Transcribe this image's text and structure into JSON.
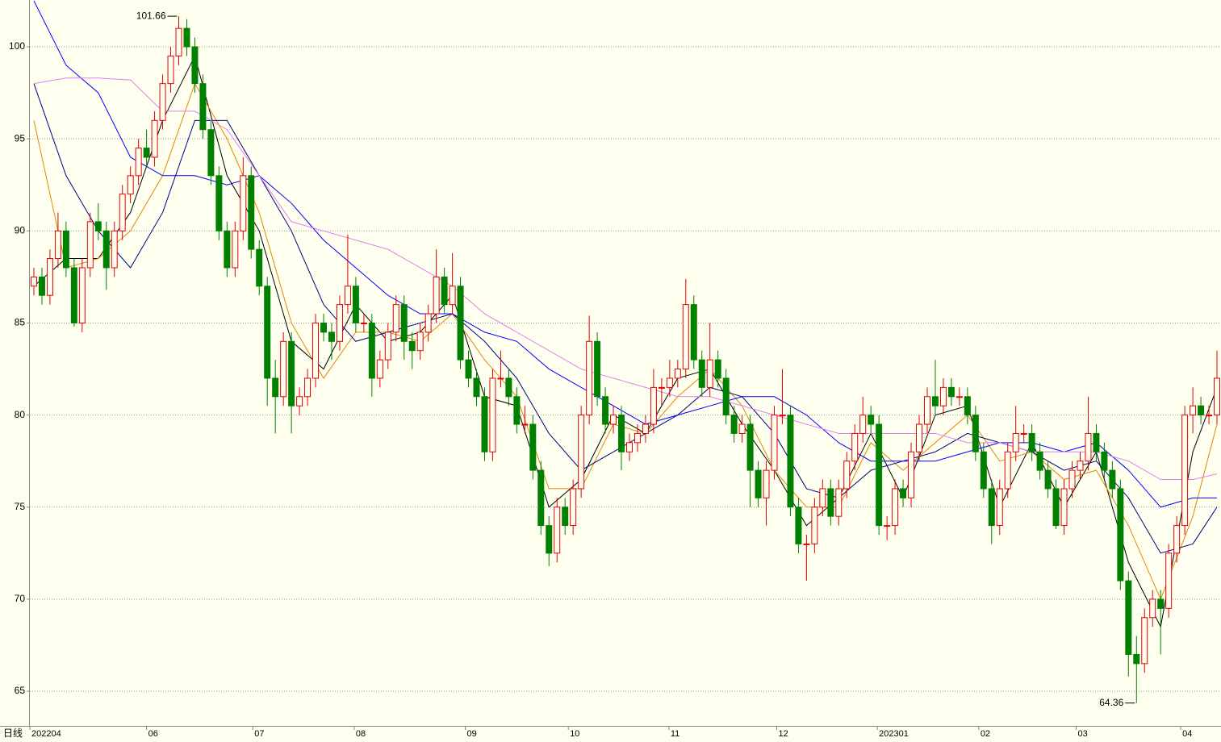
{
  "chart_data": {
    "type": "candlestick",
    "period_label": "日线",
    "max_label": "101.66",
    "min_label": "64.36",
    "ylim": [
      63.12,
      102.54
    ],
    "yticks": [
      65,
      70,
      75,
      80,
      85,
      90,
      95,
      100
    ],
    "grid": true,
    "xlim": [
      -0.5,
      147.5
    ],
    "xticks": [
      {
        "value": -0.5,
        "label": "202204"
      },
      {
        "value": 14,
        "label": "06"
      },
      {
        "value": 27.2,
        "label": "07"
      },
      {
        "value": 39.8,
        "label": "08"
      },
      {
        "value": 53.6,
        "label": "09"
      },
      {
        "value": 66.4,
        "label": "10"
      },
      {
        "value": 78.9,
        "label": "11"
      },
      {
        "value": 92.3,
        "label": "12"
      },
      {
        "value": 104.8,
        "label": "202301"
      },
      {
        "value": 117.4,
        "label": "02"
      },
      {
        "value": 129.5,
        "label": "03"
      },
      {
        "value": 142.5,
        "label": "04"
      }
    ],
    "up_color": "#e00000",
    "down_color": "#008000",
    "ohlc": [
      [
        87,
        88,
        86.5,
        87.5
      ],
      [
        87.5,
        88,
        86,
        86.5
      ],
      [
        86.5,
        89,
        86,
        88.5
      ],
      [
        88.5,
        91,
        88,
        90
      ],
      [
        90,
        90.5,
        87.5,
        88
      ],
      [
        88,
        88.5,
        84.8,
        85
      ],
      [
        85,
        88.5,
        84.5,
        88
      ],
      [
        88,
        91,
        87.5,
        90.5
      ],
      [
        90.5,
        91.5,
        89.5,
        90
      ],
      [
        90,
        90.5,
        86.8,
        88
      ],
      [
        88,
        90.5,
        87.5,
        90
      ],
      [
        90,
        92.5,
        89.5,
        92
      ],
      [
        92,
        93.5,
        91.5,
        93
      ],
      [
        93,
        95,
        92.5,
        94.5
      ],
      [
        94.5,
        95.5,
        93.5,
        94
      ],
      [
        94,
        96.5,
        93.5,
        96
      ],
      [
        96,
        98.5,
        95.5,
        98
      ],
      [
        98,
        100,
        97.5,
        99.5
      ],
      [
        99.5,
        101.66,
        99,
        101
      ],
      [
        101,
        101.5,
        99.5,
        100
      ],
      [
        100,
        100.5,
        97.5,
        98
      ],
      [
        98,
        98.5,
        95,
        95.5
      ],
      [
        95.5,
        96,
        92.5,
        93
      ],
      [
        93,
        93.5,
        89.5,
        90
      ],
      [
        90,
        90.5,
        87.5,
        88
      ],
      [
        88,
        90.5,
        87.5,
        90
      ],
      [
        90,
        94,
        89.5,
        93
      ],
      [
        93,
        93.5,
        88.5,
        89
      ],
      [
        89,
        89.5,
        86.5,
        87
      ],
      [
        87,
        87.5,
        80.5,
        82
      ],
      [
        82,
        83,
        79,
        81
      ],
      [
        81,
        84.5,
        80.5,
        84
      ],
      [
        84,
        84.5,
        79,
        80.5
      ],
      [
        80.5,
        81.5,
        80,
        81
      ],
      [
        81,
        82.5,
        80.5,
        82
      ],
      [
        82,
        85.5,
        81.5,
        85
      ],
      [
        85,
        85.5,
        84,
        84.5
      ],
      [
        84.5,
        85,
        83,
        84
      ],
      [
        84,
        86.5,
        83.5,
        86
      ],
      [
        86,
        89.8,
        85.5,
        87
      ],
      [
        87,
        87.5,
        84.5,
        85
      ],
      [
        85,
        85.5,
        84.5,
        85
      ],
      [
        85,
        85.5,
        81,
        82
      ],
      [
        82,
        83.5,
        81.5,
        83
      ],
      [
        83,
        85,
        82.5,
        84.5
      ],
      [
        84.5,
        86.5,
        84,
        86
      ],
      [
        86,
        86.5,
        83,
        84
      ],
      [
        84,
        84.5,
        82.5,
        83.5
      ],
      [
        83.5,
        85,
        83,
        84.5
      ],
      [
        84.5,
        86,
        84,
        85.5
      ],
      [
        85.5,
        89,
        85,
        87.5
      ],
      [
        87.5,
        88,
        85.5,
        86
      ],
      [
        86,
        88.8,
        85.5,
        87
      ],
      [
        87,
        87.5,
        82.5,
        83
      ],
      [
        83,
        83.5,
        81.5,
        82
      ],
      [
        82,
        82.5,
        80.5,
        81
      ],
      [
        81,
        81.5,
        77.5,
        78
      ],
      [
        78,
        82.5,
        77.5,
        82
      ],
      [
        82,
        83.5,
        81.5,
        82
      ],
      [
        82,
        82.5,
        80.5,
        81
      ],
      [
        81,
        81.5,
        79,
        79.5
      ],
      [
        79.5,
        80.5,
        79,
        79.5
      ],
      [
        79.5,
        80,
        76.5,
        77
      ],
      [
        77,
        77.5,
        73.5,
        74
      ],
      [
        74,
        74.5,
        71.8,
        72.5
      ],
      [
        72.5,
        75.5,
        72,
        75
      ],
      [
        75,
        75.5,
        73.5,
        74
      ],
      [
        74,
        76.5,
        73.5,
        76
      ],
      [
        76,
        80.5,
        75.5,
        80
      ],
      [
        80,
        85.4,
        79.5,
        84
      ],
      [
        84,
        84.5,
        80.5,
        81
      ],
      [
        81,
        81.5,
        79,
        79.5
      ],
      [
        79.5,
        80.5,
        79,
        80
      ],
      [
        80,
        80.5,
        77,
        78
      ],
      [
        78,
        79,
        77.5,
        78.5
      ],
      [
        78.5,
        79.5,
        78,
        79
      ],
      [
        79,
        80,
        78.5,
        79.5
      ],
      [
        79.5,
        82.5,
        79,
        81.5
      ],
      [
        81.5,
        82,
        80.5,
        81.5
      ],
      [
        81.5,
        83,
        81,
        82
      ],
      [
        82,
        83,
        81.5,
        82.5
      ],
      [
        82.5,
        87.4,
        82,
        86
      ],
      [
        86,
        86.5,
        82.5,
        83
      ],
      [
        83,
        83.5,
        81,
        81.5
      ],
      [
        81.5,
        85,
        81,
        83
      ],
      [
        83,
        83.5,
        81.5,
        82
      ],
      [
        82,
        82.5,
        79.5,
        80
      ],
      [
        80,
        80.5,
        78.5,
        79
      ],
      [
        79,
        80,
        78.5,
        79.5
      ],
      [
        79.5,
        80,
        75,
        77
      ],
      [
        77,
        77.5,
        75,
        75.5
      ],
      [
        75.5,
        77.5,
        74,
        77
      ],
      [
        77,
        80.5,
        76.5,
        80
      ],
      [
        80,
        82.5,
        79.5,
        80
      ],
      [
        80,
        80.5,
        74.5,
        75
      ],
      [
        75,
        75.5,
        72.5,
        73
      ],
      [
        73,
        73.5,
        71,
        73
      ],
      [
        73,
        75.5,
        72.5,
        75
      ],
      [
        75,
        76.5,
        74.5,
        76
      ],
      [
        76,
        76.5,
        74,
        74.5
      ],
      [
        74.5,
        76.5,
        74,
        76
      ],
      [
        76,
        78,
        75.5,
        77.5
      ],
      [
        77.5,
        79.5,
        77,
        79
      ],
      [
        79,
        81,
        78.5,
        80
      ],
      [
        80,
        80.5,
        79,
        79.5
      ],
      [
        79.5,
        80,
        73.5,
        74
      ],
      [
        74,
        74.5,
        73.2,
        74
      ],
      [
        74,
        76.5,
        73.5,
        76
      ],
      [
        76,
        76.5,
        75,
        75.5
      ],
      [
        75.5,
        78.5,
        75,
        78
      ],
      [
        78,
        80,
        77.5,
        79.5
      ],
      [
        79.5,
        81.5,
        79,
        81
      ],
      [
        81,
        83,
        80,
        80.5
      ],
      [
        80.5,
        82,
        80,
        81.5
      ],
      [
        81.5,
        82,
        80.5,
        81
      ],
      [
        81,
        81.5,
        80.5,
        81
      ],
      [
        81,
        81.5,
        79.5,
        80
      ],
      [
        80,
        80.5,
        77.5,
        78
      ],
      [
        78,
        78.5,
        75.5,
        76
      ],
      [
        76,
        76.5,
        73,
        74
      ],
      [
        74,
        76.5,
        73.5,
        76
      ],
      [
        76,
        78.5,
        75.5,
        78
      ],
      [
        78,
        80.5,
        77.5,
        79
      ],
      [
        79,
        79.5,
        78.5,
        79
      ],
      [
        79,
        79.5,
        77.5,
        78
      ],
      [
        78,
        78.5,
        76.5,
        77
      ],
      [
        77,
        77.5,
        75.5,
        76
      ],
      [
        76,
        76.5,
        73.8,
        74
      ],
      [
        74,
        76.5,
        73.5,
        76
      ],
      [
        76,
        77.5,
        75.5,
        77
      ],
      [
        77,
        78,
        76.5,
        77.5
      ],
      [
        77.5,
        81,
        77,
        79
      ],
      [
        79,
        79.5,
        77.5,
        78
      ],
      [
        78,
        78.5,
        76.5,
        77
      ],
      [
        77,
        77.5,
        75.5,
        76
      ],
      [
        76,
        76.5,
        70.5,
        71
      ],
      [
        71,
        71.5,
        65.8,
        67
      ],
      [
        67,
        68,
        64.36,
        66.5
      ],
      [
        66.5,
        69.5,
        66,
        69
      ],
      [
        69,
        70.5,
        68.5,
        70
      ],
      [
        70,
        70.5,
        67,
        69.5
      ],
      [
        69.5,
        73,
        69,
        72.5
      ],
      [
        72.5,
        74.5,
        72,
        74
      ],
      [
        74,
        80.5,
        73.5,
        80
      ],
      [
        80,
        81.5,
        79,
        80.5
      ],
      [
        80.5,
        81,
        79.5,
        80
      ],
      [
        80,
        80.5,
        79.5,
        80
      ],
      [
        80,
        83.5,
        79.5,
        82
      ]
    ],
    "ma_x": [
      0,
      4,
      8,
      12,
      16,
      20,
      24,
      28,
      32,
      36,
      40,
      44,
      48,
      52,
      56,
      60,
      64,
      68,
      72,
      76,
      80,
      84,
      88,
      92,
      96,
      100,
      104,
      108,
      112,
      116,
      120,
      124,
      128,
      132,
      136,
      140,
      144,
      147
    ],
    "series": [
      {
        "color": "#000000",
        "values": [
          87,
          88.5,
          88.5,
          91,
          96,
          99.5,
          93,
          90,
          84,
          82.5,
          86,
          84,
          84.5,
          86.5,
          81,
          80.5,
          75,
          76.5,
          80,
          79,
          82,
          82.5,
          79.5,
          77,
          74,
          75.5,
          79,
          75.5,
          80,
          80.5,
          75,
          78.5,
          75,
          78,
          72,
          68.5,
          78,
          81.5
        ]
      },
      {
        "color": "#e08a00",
        "values": [
          96,
          88,
          88.5,
          90,
          93,
          98,
          95,
          91,
          85,
          82,
          84.5,
          84.5,
          84,
          85.5,
          83,
          81,
          76,
          76,
          79.5,
          79,
          81,
          82.5,
          80.5,
          77,
          75,
          75,
          78.5,
          77,
          78.5,
          80,
          77.5,
          78,
          76.5,
          77,
          74,
          70,
          74.5,
          79.5
        ]
      },
      {
        "color": "#000080",
        "values": [
          98,
          93,
          90,
          88,
          91,
          96,
          96,
          93,
          90,
          86,
          84,
          84.5,
          85,
          85.5,
          84,
          82,
          79,
          77,
          78,
          79,
          80,
          81.5,
          81,
          79,
          76,
          75.5,
          77,
          77.5,
          78,
          79,
          78.5,
          78,
          77,
          77.5,
          75.5,
          72.5,
          73,
          75
        ]
      },
      {
        "color": "#0000ff",
        "values": [
          102.5,
          99,
          97.5,
          94,
          93,
          93,
          92.5,
          93,
          91.5,
          89.5,
          88,
          86.5,
          85.5,
          85.5,
          84.5,
          84,
          82.5,
          81.5,
          80.5,
          79.5,
          80,
          80.5,
          81,
          81,
          80,
          78.5,
          77.5,
          77.5,
          77.5,
          78,
          78.5,
          78.5,
          78,
          78.5,
          77,
          75,
          75.5,
          75.5
        ]
      },
      {
        "color": "#e080f0",
        "values": [
          98,
          98.3,
          98.3,
          98.2,
          96.5,
          96.5,
          95.5,
          93,
          90.5,
          90,
          89.5,
          89,
          88,
          87,
          85.5,
          84.5,
          83.5,
          82.5,
          82,
          81.5,
          81,
          81,
          80.5,
          80,
          79.5,
          79,
          79,
          79,
          79,
          78.5,
          78.5,
          78,
          78,
          78,
          77.5,
          76.5,
          76.5,
          76.8
        ]
      }
    ]
  }
}
